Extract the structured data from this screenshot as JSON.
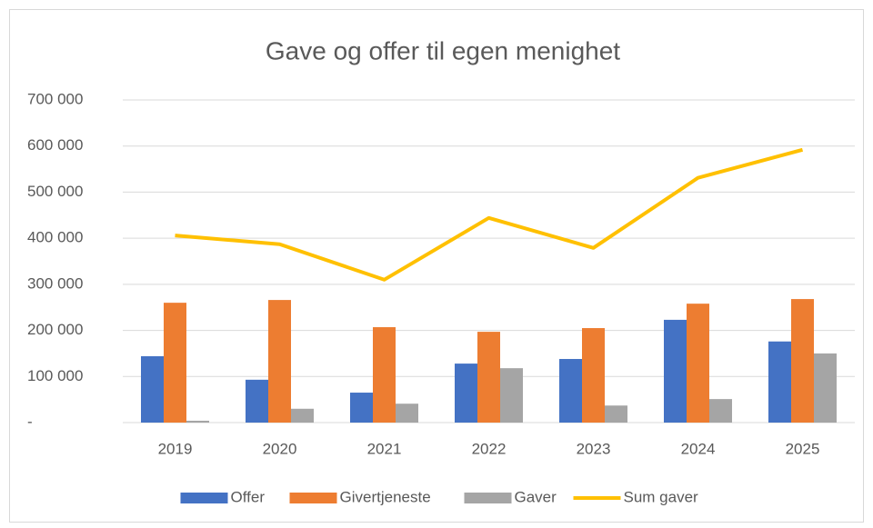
{
  "chart_data": {
    "type": "bar",
    "title": "Gave og offer til egen menighet",
    "categories": [
      "2019",
      "2020",
      "2021",
      "2022",
      "2023",
      "2024",
      "2025"
    ],
    "series": [
      {
        "name": "Offer",
        "type": "bar",
        "color": "#4472c4",
        "values": [
          144000,
          93000,
          65000,
          128000,
          138000,
          223000,
          176000
        ]
      },
      {
        "name": "Givertjeneste",
        "type": "bar",
        "color": "#ed7d31",
        "values": [
          260000,
          266000,
          207000,
          197000,
          205000,
          258000,
          268000
        ]
      },
      {
        "name": "Gaver",
        "type": "bar",
        "color": "#a5a5a5",
        "values": [
          4000,
          30000,
          41000,
          118000,
          37000,
          51000,
          150000
        ]
      },
      {
        "name": "Sum gaver",
        "type": "line",
        "color": "#ffc000",
        "values": [
          406000,
          387000,
          310000,
          444000,
          379000,
          531000,
          592000
        ]
      }
    ],
    "ylim": [
      0,
      700000
    ],
    "yticks": [
      {
        "value": 0,
        "label": "-"
      },
      {
        "value": 100000,
        "label": "100 000"
      },
      {
        "value": 200000,
        "label": "200 000"
      },
      {
        "value": 300000,
        "label": "300 000"
      },
      {
        "value": 400000,
        "label": "400 000"
      },
      {
        "value": 500000,
        "label": "500 000"
      },
      {
        "value": 600000,
        "label": "600 000"
      },
      {
        "value": 700000,
        "label": "700 000"
      }
    ],
    "grid": true,
    "legend_position": "bottom"
  }
}
